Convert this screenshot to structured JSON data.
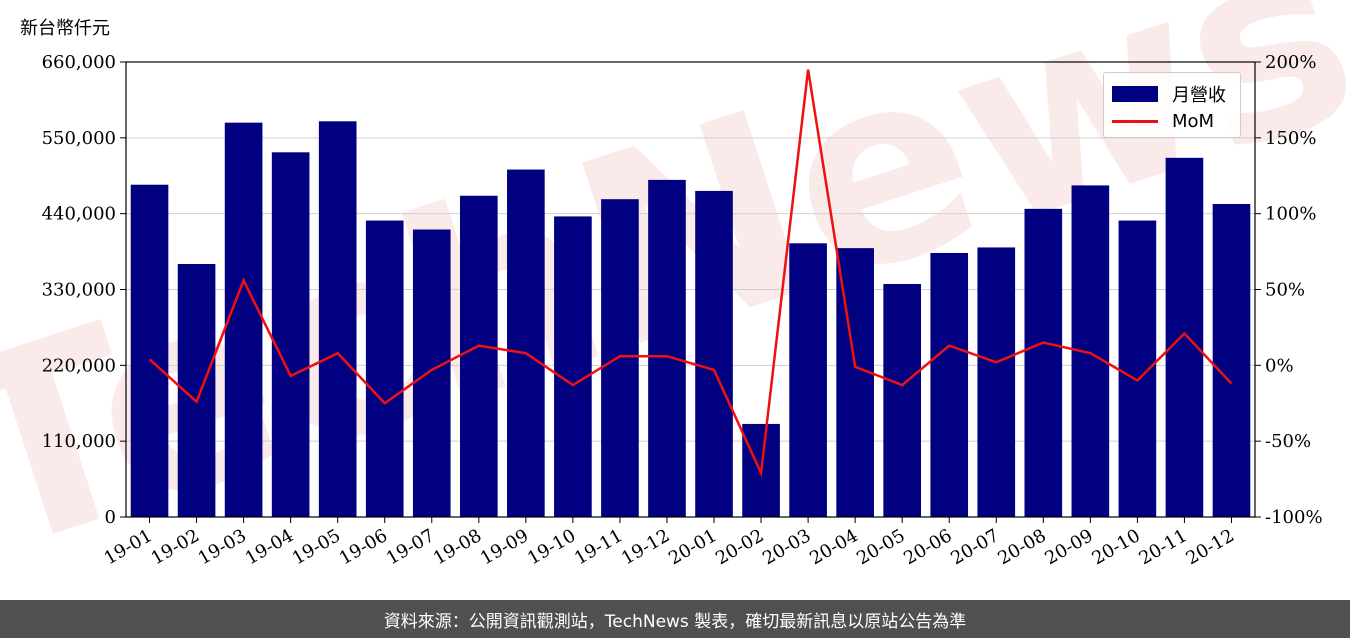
{
  "chart_data": {
    "type": "bar+line",
    "y_unit_label": "新台幣仟元",
    "categories": [
      "19-01",
      "19-02",
      "19-03",
      "19-04",
      "19-05",
      "19-06",
      "19-07",
      "19-08",
      "19-09",
      "19-10",
      "19-11",
      "19-12",
      "20-01",
      "20-02",
      "20-03",
      "20-04",
      "20-05",
      "20-06",
      "20-07",
      "20-08",
      "20-09",
      "20-10",
      "20-11",
      "20-12"
    ],
    "series": [
      {
        "name": "月營收",
        "kind": "bar",
        "axis": "left",
        "color": "#000080",
        "values": [
          482000,
          367000,
          572000,
          529000,
          574000,
          430000,
          417000,
          466000,
          504000,
          436000,
          461000,
          489000,
          473000,
          135000,
          397000,
          390000,
          338000,
          383000,
          391000,
          447000,
          481000,
          430000,
          521000,
          454000
        ]
      },
      {
        "name": "MoM",
        "kind": "line",
        "axis": "right",
        "color": "#ee1111",
        "values": [
          4,
          -24,
          56,
          -7,
          8,
          -25,
          -3,
          13,
          8,
          -13,
          6,
          6,
          -3,
          -71,
          195,
          -1,
          -13,
          13,
          2,
          15,
          8,
          -10,
          21,
          -12
        ]
      }
    ],
    "y_left": {
      "lim": [
        0,
        660000
      ],
      "ticks": [
        0,
        110000,
        220000,
        330000,
        440000,
        550000,
        660000
      ],
      "tick_labels": [
        "0",
        "110,000",
        "220,000",
        "330,000",
        "440,000",
        "550,000",
        "660,000"
      ]
    },
    "y_right": {
      "lim": [
        -100,
        200
      ],
      "ticks": [
        -100,
        -50,
        0,
        50,
        100,
        150,
        200
      ],
      "tick_labels": [
        "-100%",
        "-50%",
        "0%",
        "50%",
        "100%",
        "150%",
        "200%"
      ]
    },
    "grid": true,
    "legend_position": "top-right",
    "watermark": "TechNews"
  },
  "footer": "資料來源：公開資訊觀測站，TechNews 製表，確切最新訊息以原站公告為準"
}
